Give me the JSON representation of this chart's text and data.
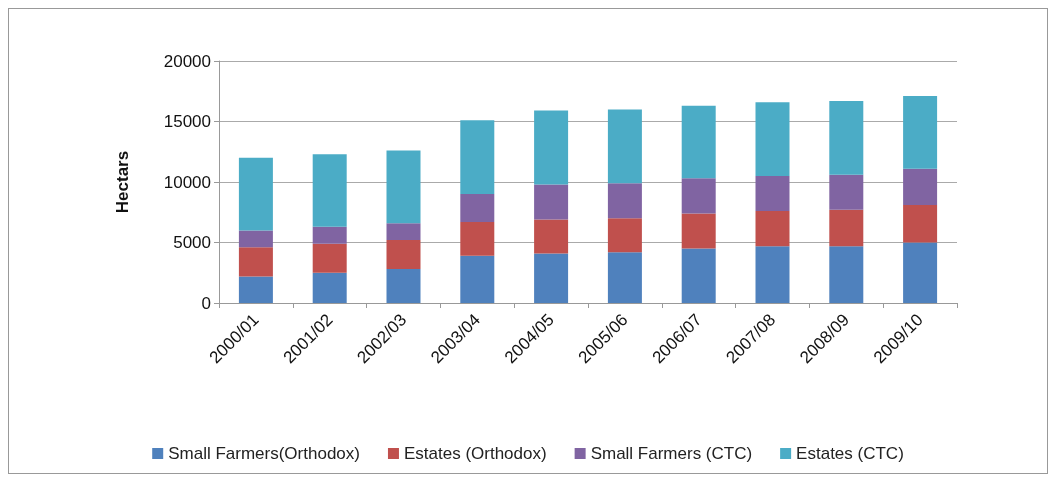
{
  "chart_data": {
    "type": "bar",
    "stacked": true,
    "ylabel": "Hectars",
    "categories": [
      "2000/01",
      "2001/02",
      "2002/03",
      "2003/04",
      "2004/05",
      "2005/06",
      "2006/07",
      "2007/08",
      "2008/09",
      "2009/10"
    ],
    "series": [
      {
        "name": "Small Farmers(Orthodox)",
        "color": "#4f81bd",
        "values": [
          2200,
          2500,
          2800,
          3900,
          4100,
          4200,
          4500,
          4700,
          4700,
          5000
        ]
      },
      {
        "name": "Estates (Orthodox)",
        "color": "#c0504d",
        "values": [
          2400,
          2400,
          2400,
          2800,
          2800,
          2800,
          2900,
          2900,
          3000,
          3100
        ]
      },
      {
        "name": "Small Farmers (CTC)",
        "color": "#8064a2",
        "values": [
          1400,
          1400,
          1400,
          2300,
          2900,
          2900,
          2900,
          2900,
          2900,
          3000
        ]
      },
      {
        "name": "Estates (CTC)",
        "color": "#4bacc6",
        "values": [
          6000,
          6000,
          6000,
          6100,
          6100,
          6100,
          6000,
          6100,
          6100,
          6000
        ]
      }
    ],
    "ylim": [
      0,
      20000
    ],
    "yticks": [
      0,
      5000,
      10000,
      15000,
      20000
    ],
    "grid": "y",
    "legend": "bottom"
  }
}
